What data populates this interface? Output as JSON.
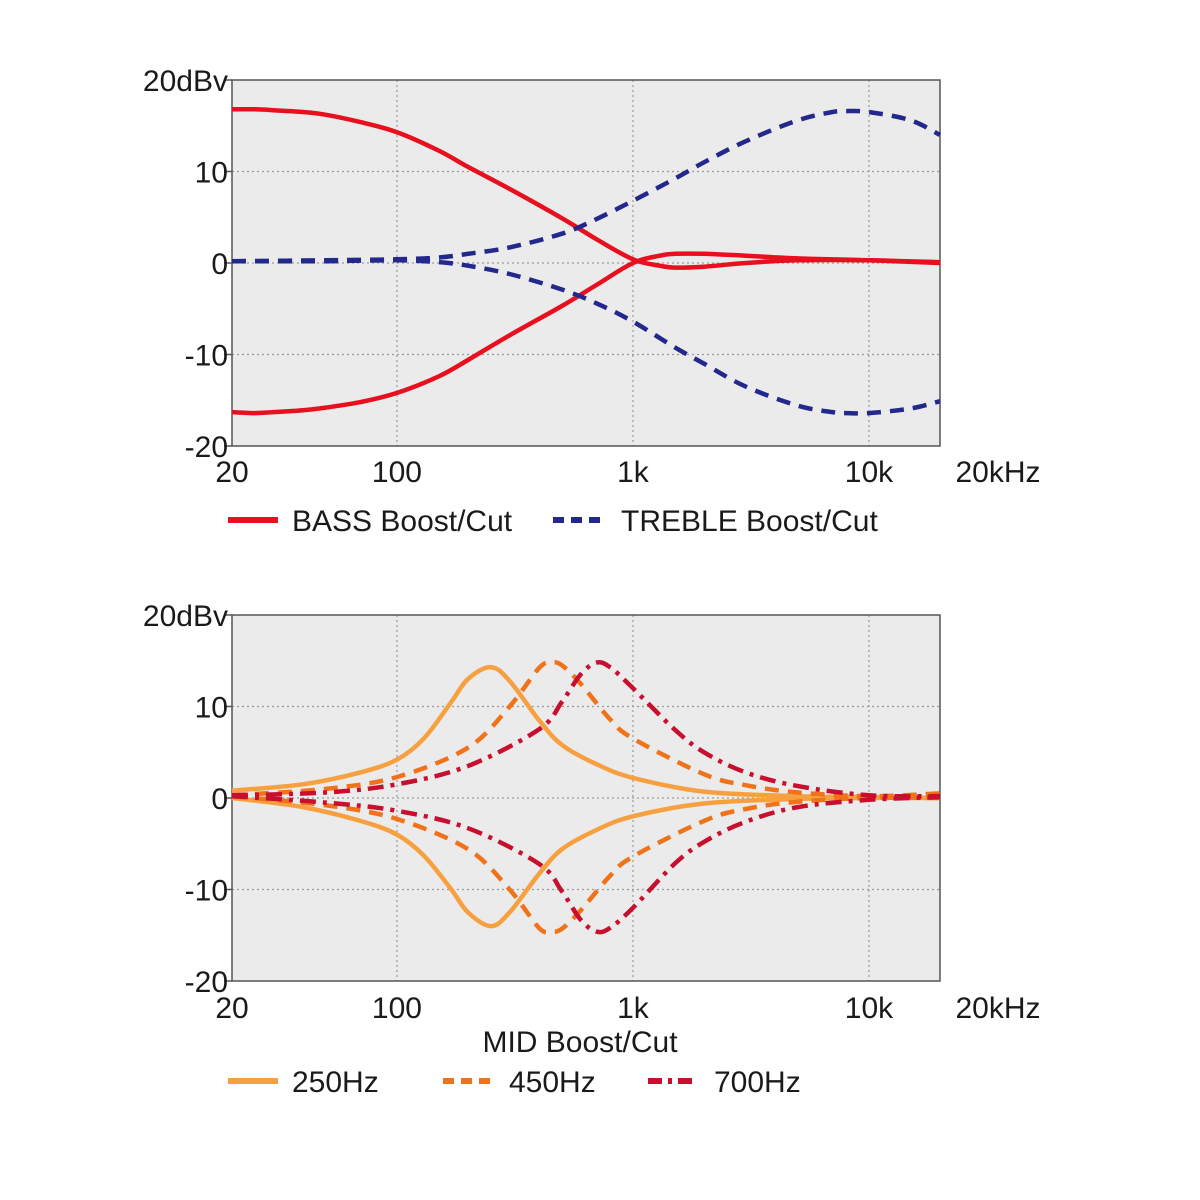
{
  "chart_data": [
    {
      "type": "line",
      "xscale": "log",
      "xlim": [
        20,
        20000
      ],
      "ylim": [
        -20,
        20
      ],
      "grid": true,
      "legend_placement": "bottom",
      "x_tick_labels": [
        "20",
        "100",
        "1k",
        "10k",
        "20kHz"
      ],
      "x_tick_values": [
        20,
        100,
        1000,
        10000,
        20000
      ],
      "y_tick_labels": [
        "20dBv",
        "10",
        "0",
        "-10",
        "-20"
      ],
      "y_tick_values": [
        20,
        10,
        0,
        -10,
        -20
      ],
      "caption": "",
      "series": [
        {
          "name": "BASS Boost/Cut",
          "color": "#e8101f",
          "dash": "solid",
          "traces": [
            {
              "x": [
                20,
                25,
                30,
                40,
                50,
                70,
                100,
                150,
                200,
                300,
                500,
                700,
                1000,
                1300,
                1500,
                2000,
                3000,
                5000,
                10000,
                20000
              ],
              "y": [
                16.8,
                16.8,
                16.7,
                16.5,
                16.2,
                15.4,
                14.3,
                12.3,
                10.5,
                8.1,
                4.9,
                2.6,
                0.4,
                -0.3,
                -0.5,
                -0.4,
                0.0,
                0.3,
                0.3,
                0.1
              ]
            },
            {
              "x": [
                20,
                25,
                30,
                40,
                50,
                70,
                100,
                150,
                200,
                300,
                500,
                700,
                1000,
                1300,
                1500,
                2000,
                3000,
                5000,
                10000,
                20000
              ],
              "y": [
                -16.3,
                -16.4,
                -16.3,
                -16.1,
                -15.8,
                -15.2,
                -14.2,
                -12.4,
                -10.6,
                -7.9,
                -4.7,
                -2.4,
                0.0,
                0.8,
                1.0,
                1.0,
                0.8,
                0.5,
                0.3,
                0.0
              ]
            }
          ]
        },
        {
          "name": "TREBLE Boost/Cut",
          "color": "#23288c",
          "dash": "dashed",
          "traces": [
            {
              "x": [
                20,
                50,
                100,
                150,
                200,
                300,
                500,
                700,
                1000,
                1500,
                2000,
                3000,
                5000,
                7000,
                8000,
                10000,
                15000,
                20000
              ],
              "y": [
                0.2,
                0.3,
                0.4,
                0.6,
                1.0,
                1.7,
                3.2,
                4.8,
                6.8,
                9.2,
                11.0,
                13.3,
                15.6,
                16.5,
                16.6,
                16.5,
                15.6,
                14.0
              ]
            },
            {
              "x": [
                20,
                50,
                100,
                150,
                200,
                300,
                500,
                700,
                1000,
                1500,
                2000,
                3000,
                5000,
                7000,
                8000,
                10000,
                15000,
                20000
              ],
              "y": [
                0.2,
                0.2,
                0.3,
                0.1,
                -0.3,
                -1.2,
                -2.9,
                -4.4,
                -6.4,
                -9.2,
                -11.0,
                -13.5,
                -15.6,
                -16.3,
                -16.4,
                -16.4,
                -15.9,
                -15.1
              ]
            }
          ]
        }
      ]
    },
    {
      "type": "line",
      "xscale": "log",
      "xlim": [
        20,
        20000
      ],
      "ylim": [
        -20,
        20
      ],
      "grid": true,
      "legend_placement": "bottom",
      "x_tick_labels": [
        "20",
        "100",
        "1k",
        "10k",
        "20kHz"
      ],
      "x_tick_values": [
        20,
        100,
        1000,
        10000,
        20000
      ],
      "y_tick_labels": [
        "20dBv",
        "10",
        "0",
        "-10",
        "-20"
      ],
      "y_tick_values": [
        20,
        10,
        0,
        -10,
        -20
      ],
      "caption": "MID Boost/Cut",
      "series": [
        {
          "name": "250Hz",
          "color": "#f7a040",
          "dash": "solid",
          "traces": [
            {
              "x": [
                20,
                40,
                70,
                100,
                130,
                170,
                200,
                250,
                300,
                400,
                500,
                700,
                1000,
                2000,
                5000,
                10000,
                20000
              ],
              "y": [
                0.8,
                1.5,
                2.8,
                4.2,
                6.5,
                10.5,
                13.0,
                14.3,
                12.8,
                8.5,
                5.8,
                3.7,
                2.2,
                0.7,
                0.2,
                0.1,
                0.0
              ]
            },
            {
              "x": [
                20,
                40,
                70,
                100,
                130,
                170,
                200,
                250,
                300,
                400,
                500,
                700,
                1000,
                2000,
                5000,
                10000,
                20000
              ],
              "y": [
                0.0,
                -1.0,
                -2.5,
                -4.0,
                -6.3,
                -10.0,
                -12.5,
                -14.0,
                -12.5,
                -8.3,
                -5.6,
                -3.5,
                -2.0,
                -0.6,
                -0.1,
                0.0,
                0.0
              ]
            }
          ]
        },
        {
          "name": "450Hz",
          "color": "#f07219",
          "dash": "dashed",
          "traces": [
            {
              "x": [
                20,
                50,
                100,
                200,
                300,
                400,
                450,
                500,
                600,
                800,
                1000,
                2000,
                3000,
                5000,
                10000,
                20000
              ],
              "y": [
                0.3,
                1.0,
                2.3,
                5.5,
                10.0,
                14.2,
                14.8,
                14.5,
                12.5,
                8.6,
                6.5,
                2.6,
                1.4,
                0.6,
                0.2,
                0.5
              ]
            },
            {
              "x": [
                20,
                50,
                100,
                200,
                300,
                400,
                450,
                500,
                600,
                800,
                1000,
                2000,
                3000,
                5000,
                10000,
                20000
              ],
              "y": [
                0.2,
                -0.8,
                -2.3,
                -5.6,
                -10.0,
                -14.2,
                -14.6,
                -14.3,
                -12.3,
                -8.5,
                -6.4,
                -2.5,
                -1.2,
                -0.4,
                0.0,
                0.0
              ]
            }
          ]
        },
        {
          "name": "700Hz",
          "color": "#c8102e",
          "dash": "dashdot",
          "traces": [
            {
              "x": [
                20,
                50,
                100,
                200,
                400,
                500,
                600,
                700,
                800,
                1000,
                1500,
                2000,
                3000,
                5000,
                10000,
                20000
              ],
              "y": [
                0.3,
                0.6,
                1.5,
                3.5,
                7.5,
                10.5,
                13.5,
                14.8,
                14.3,
                12.0,
                7.5,
                5.0,
                2.8,
                1.3,
                0.3,
                0.2
              ]
            },
            {
              "x": [
                20,
                50,
                100,
                200,
                400,
                500,
                600,
                700,
                800,
                1000,
                1500,
                2000,
                3000,
                5000,
                10000,
                20000
              ],
              "y": [
                0.2,
                -0.5,
                -1.4,
                -3.3,
                -7.2,
                -10.2,
                -13.3,
                -14.6,
                -14.2,
                -12.0,
                -7.2,
                -4.8,
                -2.6,
                -1.0,
                -0.2,
                0.1
              ]
            }
          ]
        }
      ]
    }
  ]
}
